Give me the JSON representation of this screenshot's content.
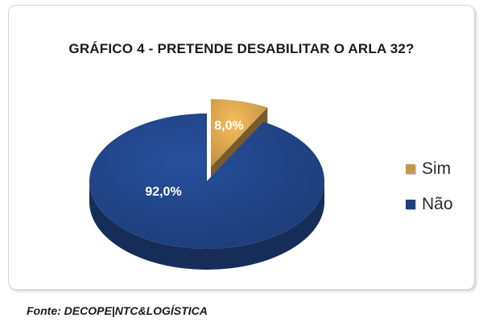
{
  "chart_data": {
    "type": "pie",
    "title": "GRÁFICO 4 - PRETENDE DESABILITAR O ARLA 32?",
    "slices": [
      {
        "label": "Sim",
        "value": 8.0,
        "value_label": "8,0%",
        "color": "#c69749"
      },
      {
        "label": "Não",
        "value": 92.0,
        "value_label": "92,0%",
        "color": "#1f3f7d"
      }
    ],
    "legend_position": "right",
    "exploded_slice": "Sim",
    "style": "3d"
  },
  "source": "Fonte: DECOPE|NTC&LOGÍSTICA"
}
